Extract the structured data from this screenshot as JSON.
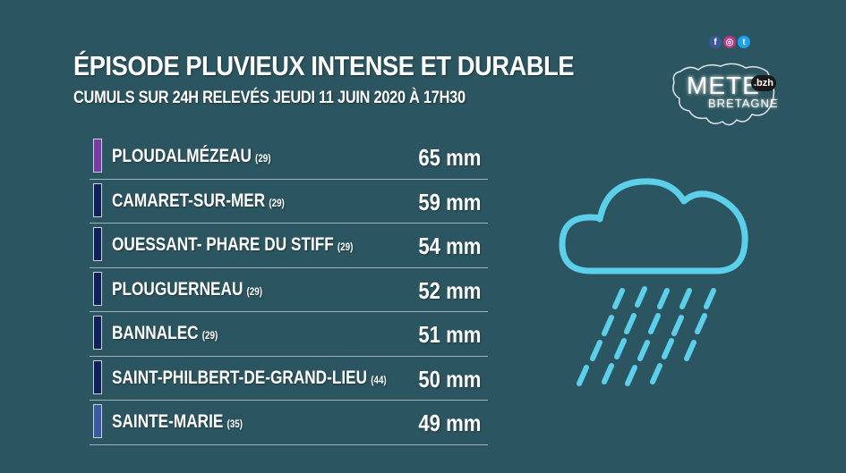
{
  "header": {
    "title": "ÉPISODE PLUVIEUX INTENSE ET DURABLE",
    "subtitle": "CUMULS SUR 24H RELEVÉS JEUDI 11 JUIN 2020 À 17H30"
  },
  "logo": {
    "line1": "METE",
    "line2": "BRETAGNE",
    "badge": ".bzh"
  },
  "social": {
    "icons": [
      "facebook-icon",
      "instagram-icon",
      "twitter-icon"
    ]
  },
  "rows": [
    {
      "name": "PLOUDALMÉZEAU",
      "dept": "(29)",
      "value": "65 mm",
      "color": "#7b3aa8"
    },
    {
      "name": "CAMARET-SUR-MER",
      "dept": "(29)",
      "value": "59 mm",
      "color": "#10205a"
    },
    {
      "name": "OUESSANT- PHARE DU STIFF",
      "dept": "(29)",
      "value": "54 mm",
      "color": "#10205a"
    },
    {
      "name": "PLOUGUERNEAU",
      "dept": "(29)",
      "value": "52 mm",
      "color": "#10205a"
    },
    {
      "name": "BANNALEC",
      "dept": "(29)",
      "value": "51 mm",
      "color": "#10205a"
    },
    {
      "name": "SAINT-PHILBERT-DE-GRAND-LIEU",
      "dept": "(44)",
      "value": "50 mm",
      "color": "#10205a"
    },
    {
      "name": "SAINTE-MARIE",
      "dept": "(35)",
      "value": "49 mm",
      "color": "#3a58a8"
    }
  ],
  "colors": {
    "background": "#2b5560",
    "rain_icon": "#5cd0ea"
  }
}
